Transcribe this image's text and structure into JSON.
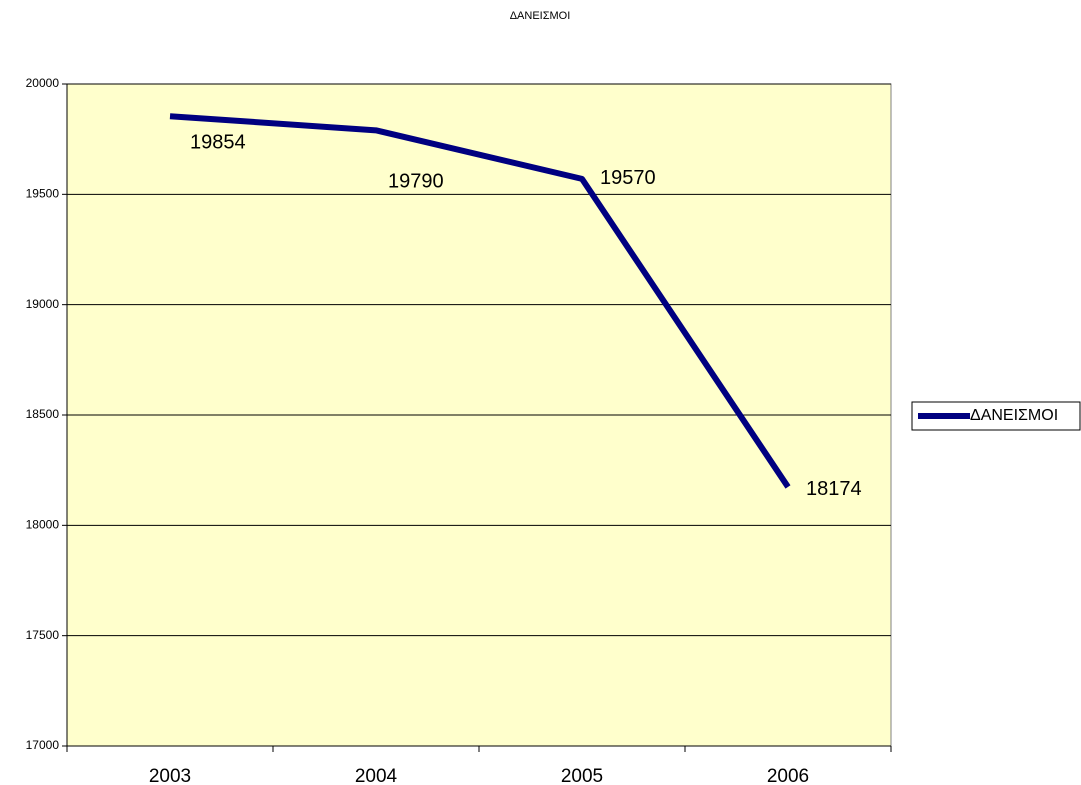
{
  "chart_data": {
    "type": "line",
    "title": "ΔΑΝΕΙΣΜΟΙ",
    "categories": [
      "2003",
      "2004",
      "2005",
      "2006"
    ],
    "series": [
      {
        "name": "ΔΑΝΕΙΣΜΟΙ",
        "color": "#000080",
        "values": [
          19854,
          19790,
          19570,
          18174
        ]
      }
    ],
    "ylim": [
      17000,
      20000
    ],
    "yticks": [
      17000,
      17500,
      18000,
      18500,
      19000,
      19500,
      20000
    ],
    "grid": true,
    "legend": "right",
    "plot_background": "#ffffcc"
  }
}
